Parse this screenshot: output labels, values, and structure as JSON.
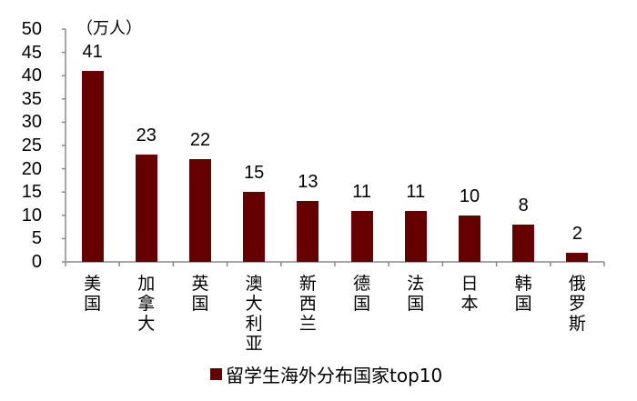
{
  "chart_data": {
    "type": "bar",
    "title": "",
    "unit_label": "（万人）",
    "xlabel": "",
    "ylabel": "",
    "ylim": [
      0,
      50
    ],
    "yticks": [
      0,
      5,
      10,
      15,
      20,
      25,
      30,
      35,
      40,
      45,
      50
    ],
    "grid": false,
    "legend_position": "bottom",
    "categories": [
      "美国",
      "加拿大",
      "英国",
      "澳大利亚",
      "新西兰",
      "德国",
      "法国",
      "日本",
      "韩国",
      "俄罗斯"
    ],
    "series": [
      {
        "name": "留学生海外分布国家top10",
        "color": "#660000",
        "values": [
          41,
          23,
          22,
          15,
          13,
          11,
          11,
          10,
          8,
          2
        ]
      }
    ]
  },
  "colors": {
    "bar": "#660000",
    "axis": "#888888"
  }
}
